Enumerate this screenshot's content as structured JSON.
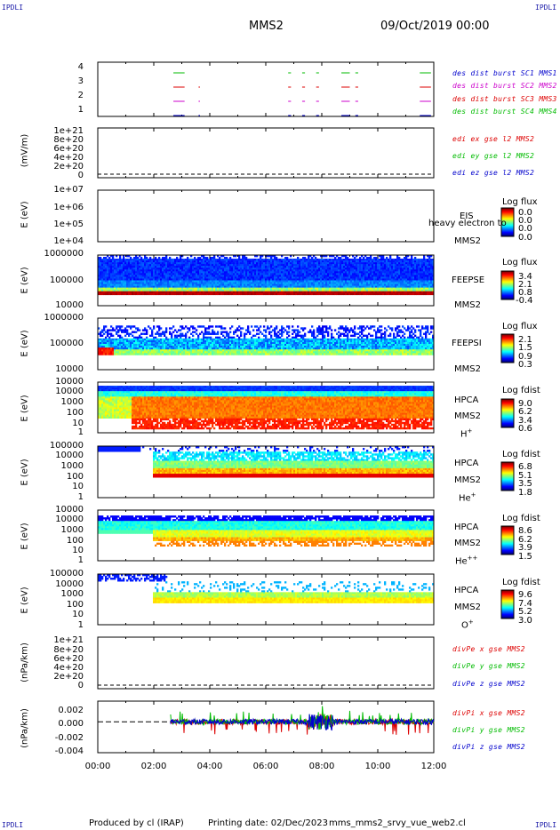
{
  "header": {
    "corner_label": "IPDLI",
    "spacecraft": "MMS2",
    "date": "09/Oct/2019 00:00"
  },
  "footer": {
    "produced_by": "Produced by cl (IRAP)",
    "printing_date": "Printing date: 02/Dec/2023",
    "script_name": "mms_mms2_srvy_vue_web2.cl"
  },
  "colors": {
    "red": "#dd0000",
    "green": "#00bb00",
    "blue": "#0000cc",
    "magenta": "#cc00cc"
  },
  "time_axis": {
    "ticks": [
      "00:00",
      "02:00",
      "04:00",
      "06:00",
      "08:00",
      "10:00",
      "12:00"
    ],
    "range_hours": [
      0,
      12
    ]
  },
  "chart_data": [
    {
      "type": "line",
      "panel": "burst",
      "ylabel": "",
      "yticks": [
        "4",
        "3",
        "2",
        "1"
      ],
      "series": [
        {
          "name": "des dist burst SC1 MMS1",
          "color": "#0000cc",
          "level": 1,
          "intervals": [
            [
              2.7,
              3.1
            ],
            [
              3.6,
              3.65
            ],
            [
              6.8,
              6.9
            ],
            [
              7.3,
              7.4
            ],
            [
              7.8,
              7.9
            ],
            [
              8.7,
              9.0
            ],
            [
              9.2,
              9.3
            ],
            [
              11.5,
              11.9
            ]
          ]
        },
        {
          "name": "des dist burst SC2 MMS2",
          "color": "#cc00cc",
          "level": 2,
          "intervals": [
            [
              2.7,
              3.1
            ],
            [
              3.6,
              3.65
            ],
            [
              6.8,
              6.9
            ],
            [
              7.3,
              7.4
            ],
            [
              7.8,
              7.9
            ],
            [
              8.7,
              9.0
            ],
            [
              9.2,
              9.3
            ],
            [
              11.5,
              11.9
            ]
          ]
        },
        {
          "name": "des dist burst SC3 MMS3",
          "color": "#dd0000",
          "level": 3,
          "intervals": [
            [
              2.7,
              3.1
            ],
            [
              3.6,
              3.65
            ],
            [
              6.8,
              6.9
            ],
            [
              7.3,
              7.4
            ],
            [
              7.8,
              7.9
            ],
            [
              8.7,
              9.0
            ],
            [
              9.2,
              9.3
            ],
            [
              11.5,
              11.9
            ]
          ]
        },
        {
          "name": "des dist burst SC4 MMS4",
          "color": "#00bb00",
          "level": 4,
          "intervals": [
            [
              2.7,
              3.1
            ],
            [
              6.8,
              6.9
            ],
            [
              7.3,
              7.4
            ],
            [
              7.8,
              7.9
            ],
            [
              8.7,
              9.0
            ],
            [
              9.2,
              9.3
            ],
            [
              11.5,
              11.9
            ]
          ]
        }
      ]
    },
    {
      "type": "line",
      "panel": "edi",
      "ylabel": "(mV/m)",
      "yticks": [
        "1e+21",
        "8e+20",
        "6e+20",
        "4e+20",
        "2e+20",
        "0"
      ],
      "series": [
        {
          "name": "edi ex gse l2 MMS2",
          "color": "#dd0000"
        },
        {
          "name": "edi ey gse l2 MMS2",
          "color": "#00bb00"
        },
        {
          "name": "edi ez gse l2 MMS2",
          "color": "#0000cc"
        }
      ]
    },
    {
      "type": "heatmap",
      "panel": "eis",
      "ylabel": "E (eV)",
      "yticks": [
        "1e+07",
        "1e+06",
        "1e+05",
        "1e+04"
      ],
      "instrument": "EIS",
      "species": "heavy electron to",
      "spacecraft": "MMS2",
      "colorbar": {
        "title": "Log flux",
        "values": [
          "0.0",
          "0.0",
          "0.0",
          "0.0"
        ]
      }
    },
    {
      "type": "heatmap",
      "panel": "feepse",
      "ylabel": "E (eV)",
      "yticks": [
        "1000000",
        "100000",
        "10000"
      ],
      "instrument": "FEEPSE",
      "spacecraft": "MMS2",
      "colorbar": {
        "title": "Log flux",
        "values": [
          "3.4",
          "2.1",
          "0.8",
          "-0.4"
        ]
      }
    },
    {
      "type": "heatmap",
      "panel": "feepsi",
      "ylabel": "E (eV)",
      "yticks": [
        "1000000",
        "100000",
        "10000"
      ],
      "instrument": "FEEPSI",
      "spacecraft": "MMS2",
      "colorbar": {
        "title": "Log flux",
        "values": [
          "2.1",
          "1.5",
          "0.9",
          "0.3"
        ]
      }
    },
    {
      "type": "heatmap",
      "panel": "hpca_h",
      "ylabel": "E (eV)",
      "yticks": [
        "10000",
        "1000",
        "100",
        "10",
        "1"
      ],
      "instrument": "HPCA",
      "spacecraft": "MMS2",
      "species": "H",
      "species_sup": "+",
      "colorbar": {
        "title": "Log fdist",
        "values": [
          "9.0",
          "6.2",
          "3.4",
          "0.6"
        ]
      }
    },
    {
      "type": "heatmap",
      "panel": "hpca_he",
      "ylabel": "E (eV)",
      "yticks": [
        "100000",
        "10000",
        "1000",
        "100",
        "10",
        "1"
      ],
      "instrument": "HPCA",
      "spacecraft": "MMS2",
      "species": "He",
      "species_sup": "+",
      "colorbar": {
        "title": "Log fdist",
        "values": [
          "6.8",
          "5.1",
          "3.5",
          "1.8"
        ]
      }
    },
    {
      "type": "heatmap",
      "panel": "hpca_hepp",
      "ylabel": "E (eV)",
      "yticks": [
        "10000",
        "1000",
        "100",
        "10",
        "1"
      ],
      "instrument": "HPCA",
      "spacecraft": "MMS2",
      "species": "He",
      "species_sup": "++",
      "colorbar": {
        "title": "Log fdist",
        "values": [
          "8.6",
          "6.2",
          "3.9",
          "1.5"
        ]
      }
    },
    {
      "type": "heatmap",
      "panel": "hpca_o",
      "ylabel": "E (eV)",
      "yticks": [
        "100000",
        "10000",
        "1000",
        "100",
        "10",
        "1"
      ],
      "instrument": "HPCA",
      "spacecraft": "MMS2",
      "species": "O",
      "species_sup": "+",
      "colorbar": {
        "title": "Log fdist",
        "values": [
          "9.6",
          "7.4",
          "5.2",
          "3.0"
        ]
      }
    },
    {
      "type": "line",
      "panel": "divpe",
      "ylabel": "(nPa/km)",
      "yticks": [
        "1e+21",
        "8e+20",
        "6e+20",
        "4e+20",
        "2e+20",
        "0"
      ],
      "series": [
        {
          "name": "divPe x gse MMS2",
          "color": "#dd0000"
        },
        {
          "name": "divPe y gse MMS2",
          "color": "#00bb00"
        },
        {
          "name": "divPe z gse MMS2",
          "color": "#0000cc"
        }
      ]
    },
    {
      "type": "line",
      "panel": "divpi",
      "ylabel": "(nPa/km)",
      "yticks": [
        "0.002",
        "0.000",
        "-0.002",
        "-0.004"
      ],
      "ylim": [
        -0.0045,
        0.003
      ],
      "series": [
        {
          "name": "divPi x gse MMS2",
          "color": "#dd0000"
        },
        {
          "name": "divPi y gse MMS2",
          "color": "#00bb00"
        },
        {
          "name": "divPi z gse MMS2",
          "color": "#0000cc"
        }
      ]
    }
  ]
}
